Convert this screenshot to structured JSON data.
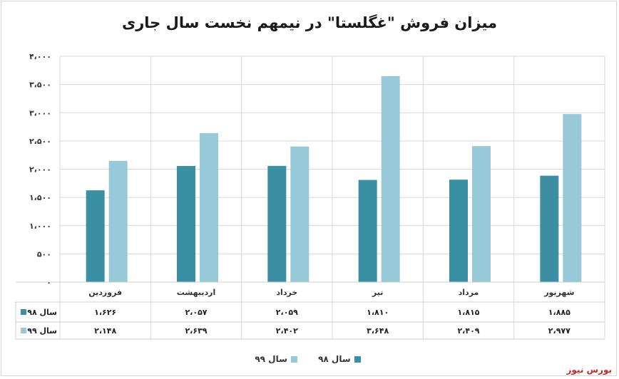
{
  "title": "میزان فروش \"غگلستا\" در نیمهم نخست سال جاری",
  "source_logo": "بورس نیوز",
  "watermark_text": "بورس نیوز",
  "chart_data": {
    "type": "bar",
    "title": "میزان فروش \"غگلستا\" در نیمهم نخست سال جاری",
    "categories": [
      "فروردین",
      "اردیبهشت",
      "خرداد",
      "تیر",
      "مرداد",
      "شهریور"
    ],
    "series": [
      {
        "name": "سال ۹۸",
        "color": "#3a8fa3",
        "values": [
          1626,
          2057,
          2059,
          1810,
          1815,
          1885
        ],
        "labels": [
          "۱،۶۲۶",
          "۲،۰۵۷",
          "۲،۰۵۹",
          "۱،۸۱۰",
          "۱،۸۱۵",
          "۱،۸۸۵"
        ]
      },
      {
        "name": "سال ۹۹",
        "color": "#98c9d8",
        "values": [
          2148,
          2639,
          2402,
          3648,
          2409,
          2977
        ],
        "labels": [
          "۲،۱۴۸",
          "۲،۶۳۹",
          "۲،۴۰۲",
          "۳،۶۴۸",
          "۲،۴۰۹",
          "۲،۹۷۷"
        ]
      }
    ],
    "ylim": [
      0,
      4000
    ],
    "yticks": [
      0,
      500,
      1000,
      1500,
      2000,
      2500,
      3000,
      3500,
      4000
    ],
    "ytick_labels": [
      "۰",
      "۵۰۰",
      "۱،۰۰۰",
      "۱،۵۰۰",
      "۲،۰۰۰",
      "۲،۵۰۰",
      "۳،۰۰۰",
      "۳،۵۰۰",
      "۴،۰۰۰"
    ],
    "grid": true,
    "legend": "bottom",
    "data_table": true
  }
}
